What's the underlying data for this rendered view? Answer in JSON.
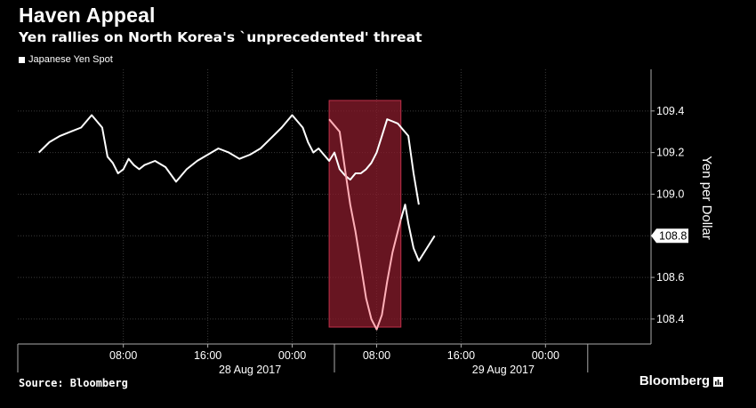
{
  "header": {
    "title": "Haven Appeal",
    "subtitle": "Yen rallies on North Korea's `unprecedented' threat"
  },
  "footer": {
    "source": "Source: Bloomberg",
    "brand": "Bloomberg"
  },
  "colors": {
    "background": "#000000",
    "line": "#ffffff",
    "highlight_fill": "#8a1c2c",
    "highlight_stroke": "#c0304a",
    "highlight_line": "#ffb0b8",
    "grid": "#3a3a3a"
  },
  "icons": {
    "brand_logo": "bloomberg-chart-icon"
  },
  "chart_data": {
    "type": "line",
    "title": "Haven Appeal",
    "subtitle": "Yen rallies on North Korea's `unprecedented' threat",
    "xlabel": "",
    "ylabel": "Yen per Dollar",
    "ylim": [
      108.28,
      109.6
    ],
    "xlim": [
      -10,
      50
    ],
    "y_ticks": [
      108.4,
      108.6,
      108.8,
      109.0,
      109.2,
      109.4
    ],
    "y_tick_labels": [
      "108.4",
      "108.6",
      "108.8",
      "109.0",
      "109.2",
      "109.4"
    ],
    "x_ticks": [
      0,
      8,
      16,
      24,
      32,
      40
    ],
    "x_tick_labels": [
      "08:00",
      "16:00",
      "00:00",
      "08:00",
      "16:00",
      "00:00"
    ],
    "date_labels": [
      {
        "x": 12,
        "label": "28 Aug 2017"
      },
      {
        "x": 36,
        "label": "29 Aug 2017"
      }
    ],
    "grid": true,
    "legend_position": "top-left",
    "last_value_label": "108.8",
    "highlight": {
      "x_start": 19.5,
      "x_end": 26.3,
      "label": ""
    },
    "series": [
      {
        "name": "Japanese Yen Spot",
        "x": [
          -8,
          -7,
          -6,
          -5,
          -4,
          -3,
          -2,
          -1.5,
          -1,
          -0.5,
          0,
          0.5,
          1,
          1.5,
          2,
          3,
          4,
          5,
          6,
          7,
          8,
          9,
          10,
          11,
          12,
          13,
          14,
          15,
          16,
          17,
          17.5,
          18,
          18.5,
          19,
          19.5,
          20,
          20.5,
          21,
          21.5,
          22,
          22.5,
          23,
          23.5,
          24,
          24.5,
          25,
          25.5,
          26,
          26.5,
          27,
          27.5,
          28
        ],
        "y": [
          109.2,
          109.25,
          109.28,
          109.3,
          109.32,
          109.38,
          109.32,
          109.18,
          109.15,
          109.1,
          109.12,
          109.17,
          109.14,
          109.12,
          109.14,
          109.16,
          109.13,
          109.06,
          109.12,
          109.16,
          109.19,
          109.22,
          109.2,
          109.17,
          109.19,
          109.22,
          109.27,
          109.32,
          109.38,
          109.32,
          109.25,
          109.2,
          109.22,
          109.19,
          109.16,
          109.2,
          109.12,
          109.09,
          109.07,
          109.1,
          109.1,
          109.12,
          109.15,
          109.2,
          109.28,
          109.36,
          109.35,
          109.34,
          109.31,
          109.28,
          109.1,
          108.95
        ]
      },
      {
        "name": "",
        "x": [
          19.5,
          20,
          20.5,
          21,
          21.5,
          22,
          22.5,
          23,
          23.5,
          24,
          24.5,
          25,
          25.5,
          26,
          26.3
        ],
        "y": [
          109.36,
          109.33,
          109.3,
          109.12,
          108.95,
          108.82,
          108.66,
          108.5,
          108.4,
          108.35,
          108.42,
          108.58,
          108.72,
          108.82,
          108.88
        ]
      },
      {
        "name": "",
        "x": [
          26.3,
          26.7,
          27,
          27.5,
          28,
          28.5,
          29,
          29.5
        ],
        "y": [
          108.88,
          108.95,
          108.86,
          108.74,
          108.68,
          108.72,
          108.76,
          108.8
        ]
      }
    ]
  }
}
